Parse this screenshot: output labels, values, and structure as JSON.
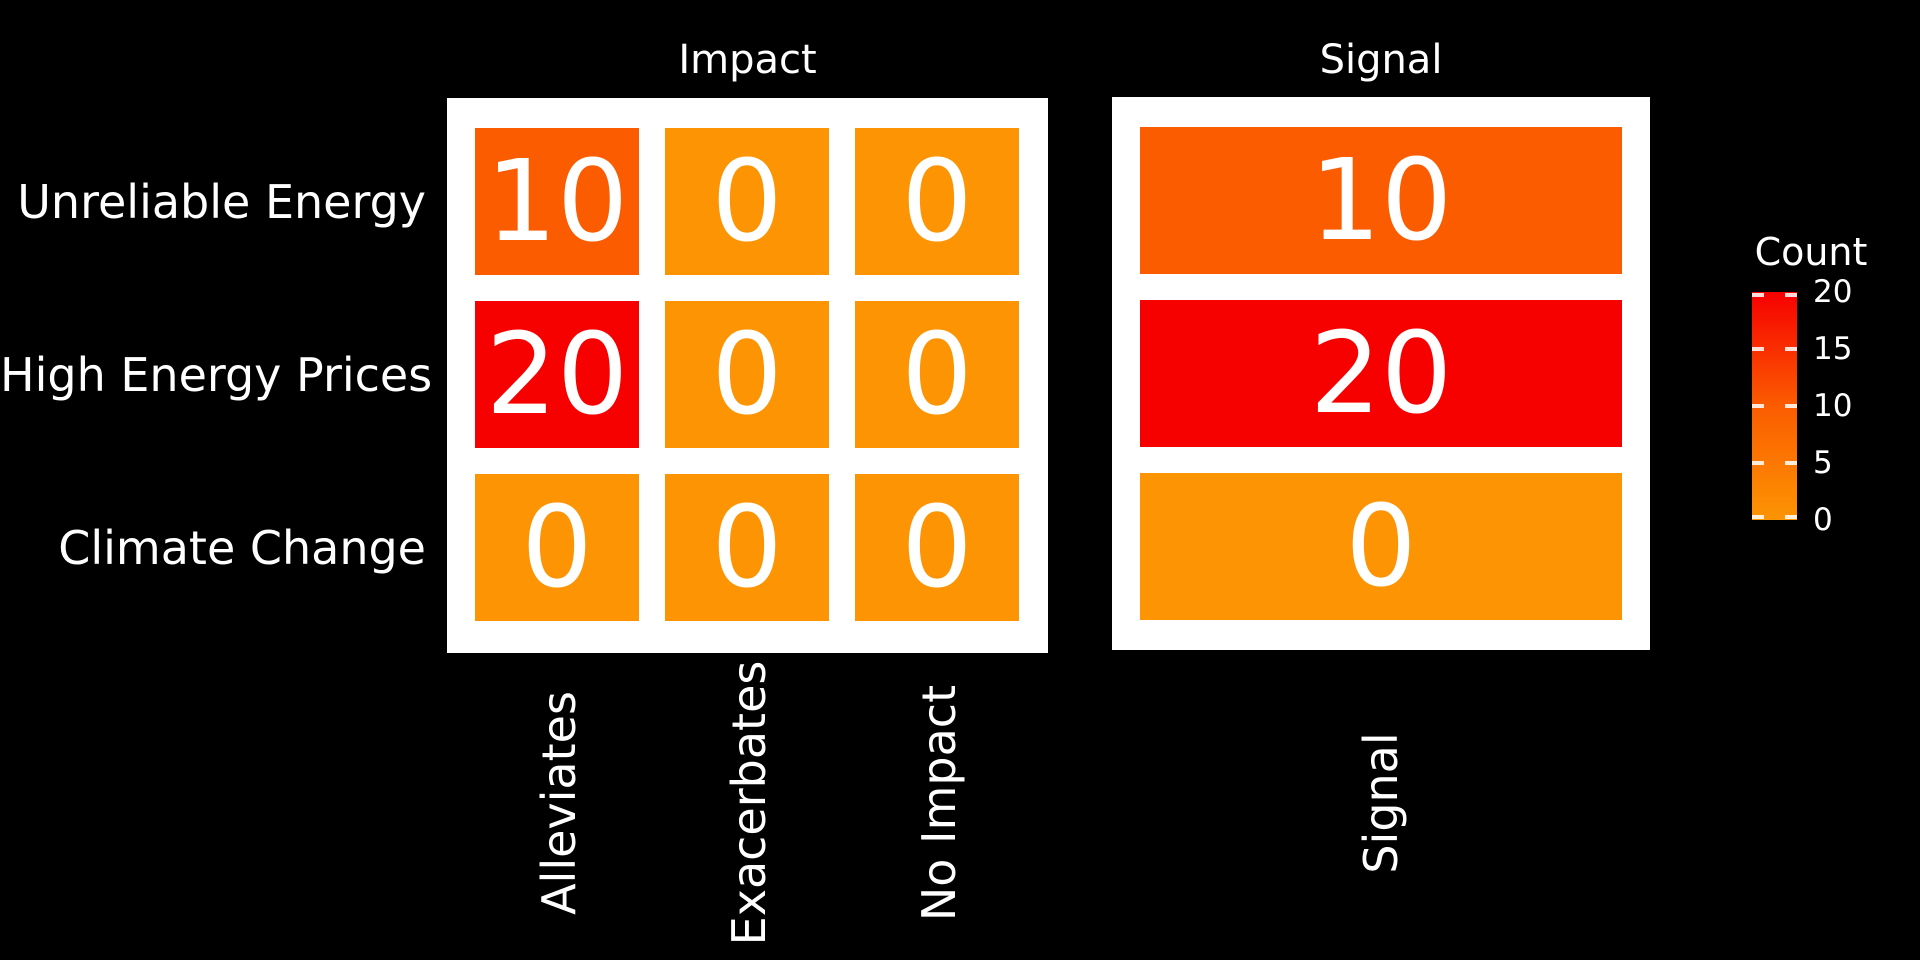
{
  "figure": {
    "background": "#000000",
    "panel_background": "#FFFFFF",
    "text_color": "#FFFFFF"
  },
  "chart_data": {
    "type": "heatmap",
    "panels": [
      {
        "title": "Impact",
        "x_labels": [
          "Alleviates",
          "Exacerbates",
          "No Impact"
        ],
        "y_labels": [
          "Unreliable Energy",
          "High Energy Prices",
          "Climate Change"
        ],
        "values": [
          [
            10,
            0,
            0
          ],
          [
            20,
            0,
            0
          ],
          [
            0,
            0,
            0
          ]
        ]
      },
      {
        "title": "Signal",
        "x_labels": [
          "Signal"
        ],
        "y_labels": [
          "Unreliable Energy",
          "High Energy Prices",
          "Climate Change"
        ],
        "values": [
          [
            10
          ],
          [
            20
          ],
          [
            0
          ]
        ]
      }
    ],
    "cell_value_color": "#FFFFFF",
    "colorbar": {
      "title": "Count",
      "range": [
        0,
        20
      ],
      "ticks": [
        20,
        15,
        10,
        5,
        0
      ],
      "color_stops": [
        {
          "value": 0,
          "color": "#FC9403"
        },
        {
          "value": 10,
          "color": "#FB5C00"
        },
        {
          "value": 20,
          "color": "#F70000"
        }
      ],
      "legend_position": "right"
    },
    "layout_hints": {
      "grid": "off",
      "x_tick_rotation_deg": 90,
      "annotations": "cell counts drawn inside cells"
    }
  }
}
